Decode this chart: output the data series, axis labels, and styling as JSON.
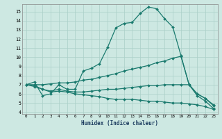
{
  "xlabel": "Humidex (Indice chaleur)",
  "bg_color": "#cde8e2",
  "line_color": "#1a7a6e",
  "grid_color": "#aacfc8",
  "xlim": [
    -0.5,
    23.5
  ],
  "ylim": [
    3.8,
    15.8
  ],
  "yticks": [
    4,
    5,
    6,
    7,
    8,
    9,
    10,
    11,
    12,
    13,
    14,
    15
  ],
  "xticks": [
    0,
    1,
    2,
    3,
    4,
    5,
    6,
    7,
    8,
    9,
    10,
    11,
    12,
    13,
    14,
    15,
    16,
    17,
    18,
    19,
    20,
    21,
    22,
    23
  ],
  "series": [
    {
      "x": [
        0,
        1,
        2,
        3,
        4,
        5,
        6,
        7,
        8,
        9,
        10,
        11,
        12,
        13,
        14,
        15,
        16,
        17,
        18,
        19,
        20,
        21,
        22,
        23
      ],
      "y": [
        7.0,
        7.3,
        5.8,
        6.0,
        7.0,
        6.5,
        6.5,
        8.5,
        8.8,
        9.3,
        11.1,
        13.2,
        13.7,
        13.8,
        14.8,
        15.5,
        15.3,
        14.2,
        13.3,
        10.2,
        7.0,
        5.8,
        5.2,
        4.4
      ]
    },
    {
      "x": [
        0,
        1,
        2,
        3,
        4,
        5,
        6,
        7,
        8,
        9,
        10,
        11,
        12,
        13,
        14,
        15,
        16,
        17,
        18,
        19,
        20,
        21,
        22,
        23
      ],
      "y": [
        7.0,
        7.0,
        7.0,
        7.1,
        7.2,
        7.2,
        7.3,
        7.5,
        7.6,
        7.8,
        8.0,
        8.2,
        8.5,
        8.7,
        8.9,
        9.1,
        9.4,
        9.6,
        9.9,
        10.1,
        7.0,
        6.0,
        5.5,
        4.8
      ]
    },
    {
      "x": [
        0,
        1,
        2,
        3,
        4,
        5,
        6,
        7,
        8,
        9,
        10,
        11,
        12,
        13,
        14,
        15,
        16,
        17,
        18,
        19,
        20,
        21,
        22,
        23
      ],
      "y": [
        7.0,
        6.9,
        6.5,
        6.3,
        6.5,
        6.3,
        6.2,
        6.2,
        6.3,
        6.4,
        6.5,
        6.5,
        6.6,
        6.7,
        6.8,
        6.9,
        6.9,
        7.0,
        7.0,
        7.0,
        7.0,
        6.0,
        5.5,
        4.7
      ]
    },
    {
      "x": [
        0,
        1,
        2,
        3,
        4,
        5,
        6,
        7,
        8,
        9,
        10,
        11,
        12,
        13,
        14,
        15,
        16,
        17,
        18,
        19,
        20,
        21,
        22,
        23
      ],
      "y": [
        7.0,
        6.8,
        6.5,
        6.2,
        6.3,
        6.2,
        6.0,
        5.9,
        5.8,
        5.7,
        5.5,
        5.4,
        5.4,
        5.4,
        5.3,
        5.2,
        5.2,
        5.1,
        5.0,
        5.0,
        4.9,
        4.8,
        4.6,
        4.3
      ]
    }
  ]
}
